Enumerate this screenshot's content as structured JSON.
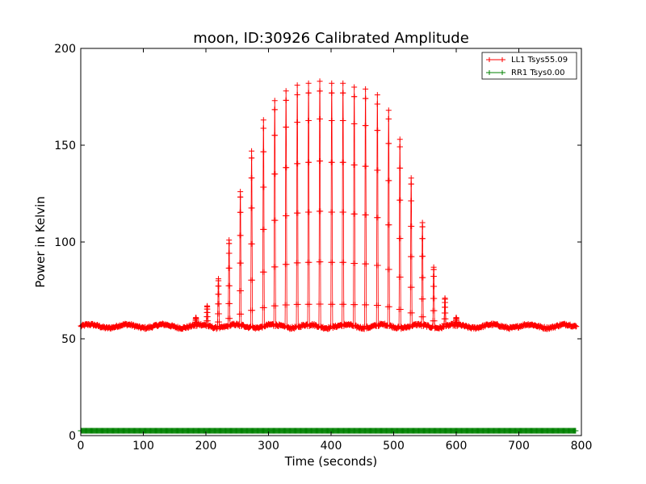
{
  "chart_data": {
    "type": "line",
    "title": "moon, ID:30926 Calibrated Amplitude",
    "xlabel": "Time (seconds)",
    "ylabel": "Power in Kelvin",
    "xlim": [
      0,
      800
    ],
    "ylim": [
      0,
      200
    ],
    "xticks": [
      "0",
      "100",
      "200",
      "300",
      "400",
      "500",
      "600",
      "700",
      "800"
    ],
    "yticks": [
      "0",
      "50",
      "100",
      "150",
      "200"
    ],
    "grid": false,
    "legend_position": "top-right",
    "baseline_ll1": 56.5,
    "scan_spacing_s": 18.5,
    "series": [
      {
        "name": "LL1 Tsys55.09",
        "color": "#ff0000",
        "marker": "+",
        "peaks": [
          {
            "t": 184,
            "v": 61
          },
          {
            "t": 202,
            "v": 67
          },
          {
            "t": 220,
            "v": 81
          },
          {
            "t": 237,
            "v": 101
          },
          {
            "t": 255,
            "v": 126
          },
          {
            "t": 273,
            "v": 147
          },
          {
            "t": 292,
            "v": 163
          },
          {
            "t": 310,
            "v": 173
          },
          {
            "t": 328,
            "v": 178
          },
          {
            "t": 346,
            "v": 181
          },
          {
            "t": 364,
            "v": 182
          },
          {
            "t": 382,
            "v": 183
          },
          {
            "t": 401,
            "v": 182
          },
          {
            "t": 419,
            "v": 182
          },
          {
            "t": 437,
            "v": 180
          },
          {
            "t": 455,
            "v": 179
          },
          {
            "t": 474,
            "v": 176
          },
          {
            "t": 492,
            "v": 168
          },
          {
            "t": 510,
            "v": 153
          },
          {
            "t": 528,
            "v": 133
          },
          {
            "t": 546,
            "v": 110
          },
          {
            "t": 564,
            "v": 87
          },
          {
            "t": 582,
            "v": 71
          },
          {
            "t": 600,
            "v": 61
          }
        ]
      },
      {
        "name": "RR1 Tsys0.00",
        "color": "#008000",
        "marker": "+",
        "constant_value": 2.5
      }
    ]
  }
}
